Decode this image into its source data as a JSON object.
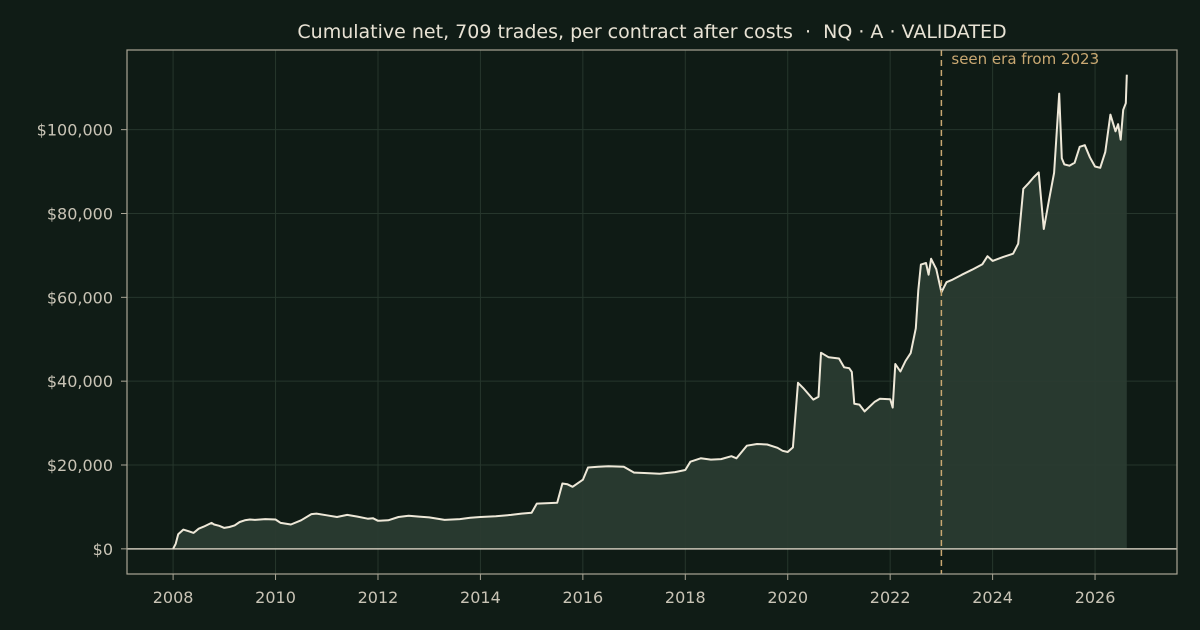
{
  "chart_data": {
    "type": "area",
    "title": "Cumulative net, 709 trades, per contract after costs  ·  NQ · A · VALIDATED",
    "xlabel": "",
    "ylabel": "",
    "xlim": [
      2007.1,
      2027.6
    ],
    "ylim": [
      -6000,
      119000
    ],
    "x_ticks": [
      2008,
      2010,
      2012,
      2014,
      2016,
      2018,
      2020,
      2022,
      2024,
      2026
    ],
    "y_ticks": [
      0,
      20000,
      40000,
      60000,
      80000,
      100000
    ],
    "y_tick_labels": [
      "$0",
      "$20,000",
      "$40,000",
      "$60,000",
      "$80,000",
      "$100,000"
    ],
    "grid": true,
    "legend": "none",
    "annotation": {
      "x": 2023.0,
      "label": "seen era from 2023",
      "style": "dashed vertical line"
    },
    "series": [
      {
        "x": [
          2008.0,
          2008.05,
          2008.1,
          2008.2,
          2008.3,
          2008.4,
          2008.5,
          2008.6,
          2008.75,
          2008.8,
          2008.9,
          2009.0,
          2009.1,
          2009.2,
          2009.3,
          2009.4,
          2009.5,
          2009.6,
          2009.8,
          2010.0,
          2010.1,
          2010.3,
          2010.5,
          2010.7,
          2010.8,
          2011.0,
          2011.2,
          2011.4,
          2011.6,
          2011.8,
          2011.9,
          2012.0,
          2012.2,
          2012.4,
          2012.6,
          2012.8,
          2013.0,
          2013.3,
          2013.6,
          2013.8,
          2014.0,
          2014.3,
          2014.6,
          2014.8,
          2015.0,
          2015.1,
          2015.5,
          2015.6,
          2015.7,
          2015.8,
          2016.0,
          2016.1,
          2016.3,
          2016.5,
          2016.8,
          2017.0,
          2017.2,
          2017.5,
          2017.8,
          2018.0,
          2018.1,
          2018.3,
          2018.5,
          2018.7,
          2018.9,
          2019.0,
          2019.2,
          2019.4,
          2019.6,
          2019.8,
          2019.9,
          2020.0,
          2020.1,
          2020.2,
          2020.3,
          2020.5,
          2020.6,
          2020.65,
          2020.8,
          2021.0,
          2021.1,
          2021.2,
          2021.25,
          2021.3,
          2021.4,
          2021.5,
          2021.7,
          2021.8,
          2022.0,
          2022.05,
          2022.1,
          2022.2,
          2022.3,
          2022.4,
          2022.5,
          2022.55,
          2022.6,
          2022.7,
          2022.75,
          2022.8,
          2022.9,
          2023.0,
          2023.1,
          2023.2,
          2023.4,
          2023.6,
          2023.8,
          2023.9,
          2024.0,
          2024.2,
          2024.4,
          2024.5,
          2024.6,
          2024.7,
          2024.8,
          2024.9,
          2025.0,
          2025.1,
          2025.2,
          2025.3,
          2025.35,
          2025.4,
          2025.5,
          2025.6,
          2025.7,
          2025.8,
          2025.9,
          2026.0,
          2026.1,
          2026.2,
          2026.3,
          2026.4,
          2026.45,
          2026.5,
          2026.55,
          2026.6,
          2026.62
        ],
        "values": [
          0,
          1200,
          3500,
          4600,
          4200,
          3800,
          4800,
          5300,
          6200,
          5800,
          5500,
          5000,
          5200,
          5600,
          6400,
          6800,
          7000,
          6900,
          7100,
          7000,
          6200,
          5800,
          6800,
          8300,
          8400,
          8000,
          7600,
          8100,
          7700,
          7200,
          7300,
          6700,
          6800,
          7600,
          7900,
          7700,
          7500,
          6900,
          7100,
          7400,
          7600,
          7800,
          8100,
          8400,
          8600,
          10800,
          11000,
          15600,
          15400,
          14800,
          16500,
          19400,
          19600,
          19700,
          19600,
          18200,
          18100,
          17900,
          18300,
          18800,
          20800,
          21600,
          21300,
          21400,
          22100,
          21600,
          24600,
          25000,
          24900,
          24100,
          23400,
          23100,
          24200,
          39600,
          38400,
          35600,
          36300,
          46800,
          45700,
          45400,
          43300,
          43100,
          42200,
          34600,
          34400,
          32800,
          35100,
          35800,
          35700,
          33700,
          44100,
          42300,
          44800,
          46700,
          52600,
          61700,
          67800,
          68200,
          65400,
          69200,
          66700,
          61200,
          63600,
          64100,
          65400,
          66600,
          67900,
          69800,
          68700,
          69600,
          70400,
          72800,
          85900,
          87200,
          88600,
          89800,
          76300,
          83200,
          89700,
          108600,
          93200,
          91700,
          91400,
          92100,
          95900,
          96300,
          93400,
          91200,
          90900,
          94700,
          103600,
          99600,
          101300,
          97600,
          104700,
          106300,
          113100
        ]
      }
    ]
  }
}
